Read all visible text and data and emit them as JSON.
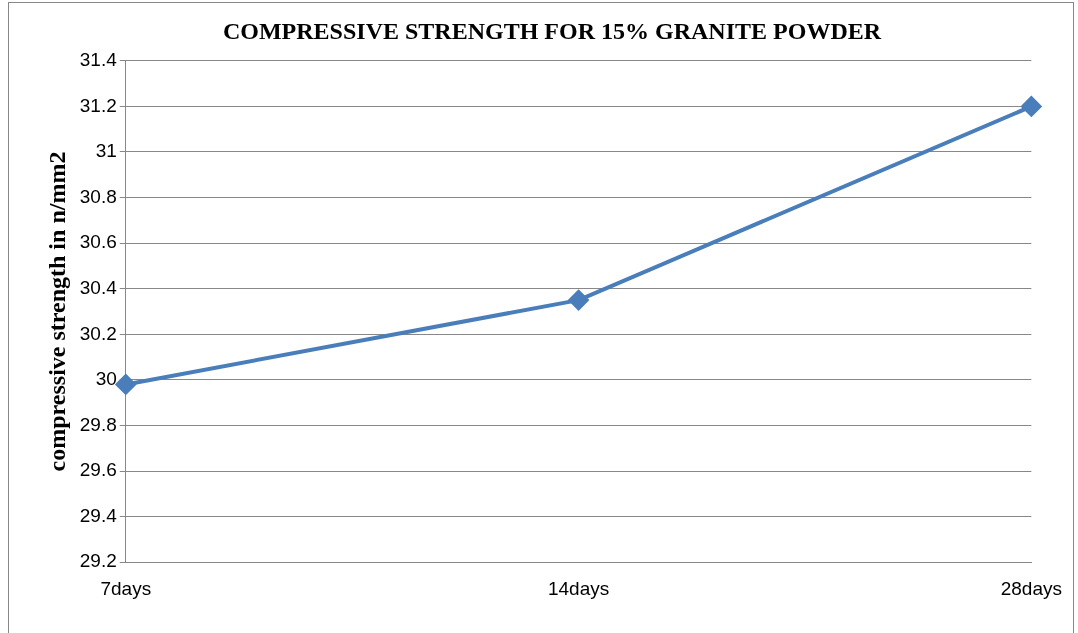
{
  "chart_data": {
    "type": "line",
    "title": "COMPRESSIVE STRENGTH FOR 15% GRANITE POWDER",
    "ylabel": "compressive strength in n/mm2",
    "categories": [
      "7days",
      "14days",
      "28days"
    ],
    "series": [
      {
        "color": "#4a7ebb",
        "values": [
          29.98,
          30.35,
          31.2
        ]
      }
    ],
    "ylim": [
      29.2,
      31.4
    ],
    "yticks": [
      29.2,
      29.4,
      29.6,
      29.8,
      30,
      30.2,
      30.4,
      30.6,
      30.8,
      31,
      31.2,
      31.4
    ],
    "grid": "y",
    "legend": false,
    "marker": "diamond",
    "line_style": "solid"
  }
}
